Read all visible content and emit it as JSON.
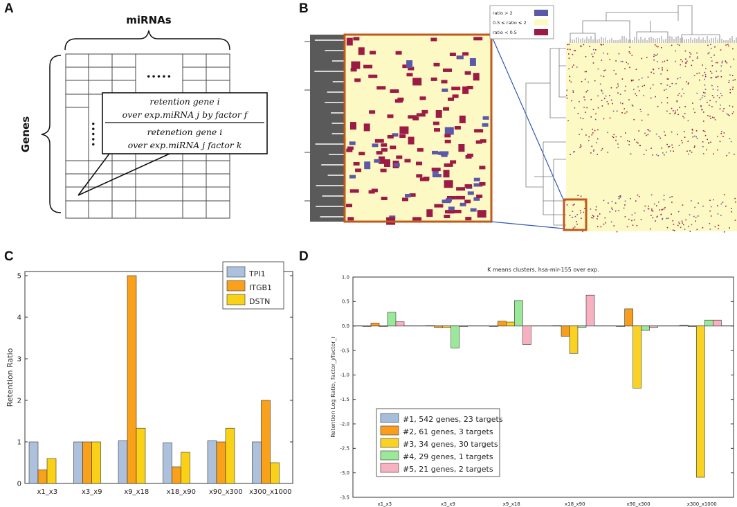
{
  "panels": {
    "a": {
      "letter": "A",
      "columns_label": "miRNAs",
      "rows_label": "Genes",
      "dots_horizontal": "•••••",
      "dots_vertical": "•••••",
      "formula": {
        "numerator_line1": "retention gene i",
        "numerator_line2": "over exp.miRNA j by factor f",
        "denominator_line1": "retenetion gene i",
        "denominator_line2": "over exp.miRNA j factor k"
      }
    },
    "b": {
      "letter": "B",
      "legend": [
        {
          "label": "ratio > 2",
          "color": "#5b59a8"
        },
        {
          "label": "0.5 ≤ ratio ≤ 2",
          "color": "#fdf9c4"
        },
        {
          "label": "ratio <  0.5",
          "color": "#9b1b44"
        }
      ]
    },
    "c": {
      "letter": "C"
    },
    "d": {
      "letter": "D"
    }
  },
  "colors": {
    "heat_bg": "#fdf9c4",
    "heat_high": "#5b59a8",
    "heat_low": "#9b1b44",
    "zoom_box": "#c0591c",
    "zoom_line": "#2f56b5"
  },
  "chart_data": [
    {
      "type": "bar",
      "panel": "C",
      "title": "",
      "xlabel": "",
      "ylabel": "Retention Ratio",
      "ylim": [
        0,
        5.1
      ],
      "yticks": [
        "0",
        "1",
        "2",
        "3",
        "4",
        "5"
      ],
      "categories": [
        "x1_x3",
        "x3_x9",
        "x9_x18",
        "x18_x90",
        "x90_x300",
        "x300_x1000"
      ],
      "legend_position": "top-right",
      "series": [
        {
          "name": "TPI1",
          "color": "#adc1dd",
          "values": [
            1.0,
            1.0,
            1.03,
            0.98,
            1.03,
            1.0
          ]
        },
        {
          "name": "ITGB1",
          "color": "#f9a11b",
          "values": [
            0.33,
            1.0,
            5.0,
            0.4,
            1.0,
            2.0
          ]
        },
        {
          "name": "DSTN",
          "color": "#f9d217",
          "values": [
            0.6,
            1.0,
            1.33,
            0.75,
            1.33,
            0.5
          ]
        }
      ]
    },
    {
      "type": "bar",
      "panel": "D",
      "title": "K means clusters, hsa-mir-155 over exp.",
      "xlabel": "",
      "ylabel": "Retention Log Ratio, factor_j/factor_i",
      "ylim": [
        -3.5,
        1.0
      ],
      "yticks": [
        "1.0",
        "0.5",
        "0.0",
        "-0.5",
        "-1.0",
        "-1.5",
        "-2.0",
        "-2.5",
        "-3.0",
        "-3.5"
      ],
      "categories": [
        "x1_x3",
        "x3_x9",
        "x9_x18",
        "x18_x90",
        "x90_x300",
        "x300_x1000"
      ],
      "legend_position": "lower-left",
      "series": [
        {
          "name": "#1, 542 genes, 23 targets",
          "color": "#a6bddb",
          "values": [
            0.0,
            0.01,
            0.0,
            0.01,
            0.0,
            0.02
          ]
        },
        {
          "name": "#2, 61 genes, 3 targets",
          "color": "#f99e1c",
          "values": [
            0.06,
            -0.03,
            0.1,
            -0.21,
            0.35,
            0.0
          ]
        },
        {
          "name": "#3, 34 genes, 30 targets",
          "color": "#fad224",
          "values": [
            0.0,
            -0.03,
            0.08,
            -0.56,
            -1.27,
            -3.09
          ]
        },
        {
          "name": "#4, 29 genes, 1 targets",
          "color": "#9be89b",
          "values": [
            0.28,
            -0.45,
            0.52,
            -0.03,
            -0.09,
            0.12
          ]
        },
        {
          "name": "#5, 21 genes, 2 targets",
          "color": "#f7b1c0",
          "values": [
            0.09,
            0.0,
            -0.38,
            0.63,
            -0.03,
            0.12
          ]
        }
      ]
    }
  ]
}
